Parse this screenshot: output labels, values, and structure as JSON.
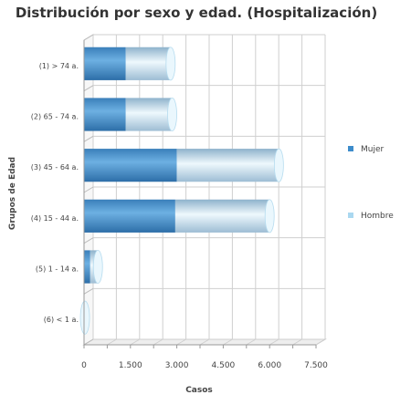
{
  "chart_data": {
    "type": "bar",
    "orientation": "horizontal",
    "stacked": true,
    "three_d": true,
    "title": "Distribución por sexo y edad. (Hospitalización)",
    "xlabel": "Casos",
    "ylabel": "Grupos de Edad",
    "categories": [
      "(1) > 74 a.",
      "(2) 65 - 74 a.",
      "(3) 45 - 64 a.",
      "(4) 15 - 44 a.",
      "(5) 1 - 14 a.",
      "(6) < 1 a."
    ],
    "series": [
      {
        "name": "Mujer",
        "color": "#3d8ccb",
        "values": [
          1350,
          1350,
          3000,
          2950,
          200,
          0
        ]
      },
      {
        "name": "Hombre",
        "color": "#aad8f0",
        "values": [
          1450,
          1500,
          3300,
          3050,
          250,
          30
        ]
      }
    ],
    "xlim": [
      0,
      7500
    ],
    "xticks": [
      0,
      750,
      1500,
      2250,
      3000,
      3750,
      4500,
      5250,
      6000,
      6750,
      7500
    ],
    "xtick_labels": [
      "0",
      "",
      "1.500",
      "",
      "3.000",
      "",
      "4.500",
      "",
      "6.000",
      "",
      "7.500"
    ],
    "grid": true,
    "legend_position": "right"
  }
}
